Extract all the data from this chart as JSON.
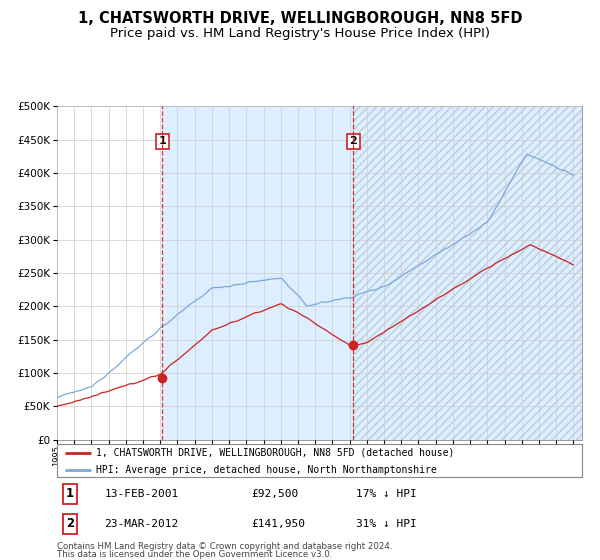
{
  "title": "1, CHATSWORTH DRIVE, WELLINGBOROUGH, NN8 5FD",
  "subtitle": "Price paid vs. HM Land Registry's House Price Index (HPI)",
  "legend_line1": "1, CHATSWORTH DRIVE, WELLINGBOROUGH, NN8 5FD (detached house)",
  "legend_line2": "HPI: Average price, detached house, North Northamptonshire",
  "footnote1": "Contains HM Land Registry data © Crown copyright and database right 2024.",
  "footnote2": "This data is licensed under the Open Government Licence v3.0.",
  "table_row1_date": "13-FEB-2001",
  "table_row1_price": "£92,500",
  "table_row1_hpi": "17% ↓ HPI",
  "table_row2_date": "23-MAR-2012",
  "table_row2_price": "£141,950",
  "table_row2_hpi": "31% ↓ HPI",
  "sale1_date": 2001.12,
  "sale1_price": 92500,
  "sale2_date": 2012.22,
  "sale2_price": 141950,
  "xmin": 1995.0,
  "xmax": 2025.5,
  "ymin": 0,
  "ymax": 500000,
  "yticks": [
    0,
    50000,
    100000,
    150000,
    200000,
    250000,
    300000,
    350000,
    400000,
    450000,
    500000
  ],
  "hpi_color": "#7aaadd",
  "price_color": "#cc2222",
  "bg_shaded_color": "#ddeeff",
  "grid_color": "#cccccc",
  "title_fontsize": 10.5,
  "subtitle_fontsize": 9.5
}
